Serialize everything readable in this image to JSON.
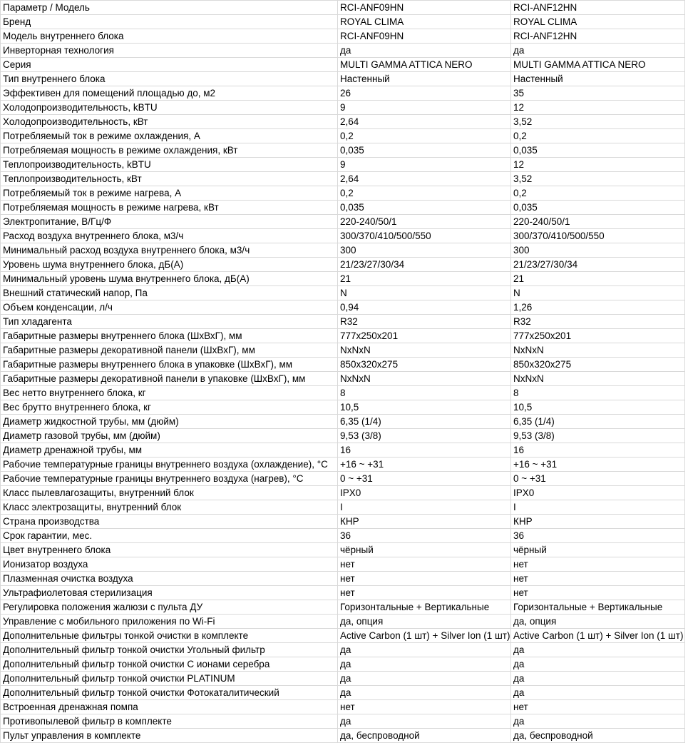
{
  "colors": {
    "grid_line": "#d9d9d9",
    "text": "#000000",
    "background": "#ffffff"
  },
  "table": {
    "header": [
      "Параметр / Модель",
      "RCI-ANF09HN",
      "RCI-ANF12HN"
    ],
    "rows": [
      [
        "Бренд",
        "ROYAL CLIMA",
        "ROYAL CLIMA"
      ],
      [
        "Модель внутреннего блока",
        "RCI-ANF09HN",
        "RCI-ANF12HN"
      ],
      [
        "Инверторная технология",
        "да",
        "да"
      ],
      [
        "Серия",
        "MULTI GAMMA ATTICA NERO",
        "MULTI GAMMA ATTICA NERO"
      ],
      [
        "Тип внутреннего блока",
        "Настенный",
        "Настенный"
      ],
      [
        "Эффективен для помещений площадью до, м2",
        "26",
        "35"
      ],
      [
        "Холодопроизводительность, kBTU",
        "9",
        "12"
      ],
      [
        "Холодопроизводительность, кВт",
        "2,64",
        "3,52"
      ],
      [
        "Потребляемый ток в режиме охлаждения, А",
        "0,2",
        "0,2"
      ],
      [
        "Потребляемая мощность в режиме охлаждения, кВт",
        "0,035",
        "0,035"
      ],
      [
        "Теплопроизводительность, kBTU",
        "9",
        "12"
      ],
      [
        "Теплопроизводительность, кВт",
        "2,64",
        "3,52"
      ],
      [
        "Потребляемый ток в режиме нагрева, А",
        "0,2",
        "0,2"
      ],
      [
        "Потребляемая мощность в режиме нагрева, кВт",
        "0,035",
        "0,035"
      ],
      [
        "Электропитание, В/Гц/Ф",
        "220-240/50/1",
        "220-240/50/1"
      ],
      [
        "Расход воздуха внутреннего блока, м3/ч",
        "300/370/410/500/550",
        "300/370/410/500/550"
      ],
      [
        "Минимальный расход воздуха внутреннего блока, м3/ч",
        "300",
        "300"
      ],
      [
        "Уровень шума внутреннего блока, дБ(А)",
        "21/23/27/30/34",
        "21/23/27/30/34"
      ],
      [
        "Минимальный уровень шума внутреннего блока, дБ(А)",
        "21",
        "21"
      ],
      [
        "Внешний статический напор, Па",
        "N",
        "N"
      ],
      [
        "Объем конденсации, л/ч",
        "0,94",
        "1,26"
      ],
      [
        "Тип хладагента",
        "R32",
        "R32"
      ],
      [
        "Габаритные размеры внутреннего блока (ШхВхГ), мм",
        "777x250x201",
        "777x250x201"
      ],
      [
        "Габаритные размеры декоративной панели (ШхВхГ), мм",
        "NxNxN",
        "NxNxN"
      ],
      [
        "Габаритные размеры внутреннего блока в упаковке (ШхВхГ), мм",
        "850x320x275",
        "850x320x275"
      ],
      [
        "Габаритные размеры декоративной панели в упаковке (ШхВхГ), мм",
        "NxNxN",
        "NxNxN"
      ],
      [
        "Вес нетто внутреннего блока, кг",
        "8",
        "8"
      ],
      [
        "Вес брутто внутреннего блока, кг",
        "10,5",
        "10,5"
      ],
      [
        "Диаметр жидкостной трубы, мм (дюйм)",
        "6,35 (1/4)",
        "6,35 (1/4)"
      ],
      [
        "Диаметр газовой трубы, мм (дюйм)",
        "9,53 (3/8)",
        "9,53 (3/8)"
      ],
      [
        "Диаметр дренажной трубы, мм",
        "16",
        "16"
      ],
      [
        "Рабочие температурные границы внутреннего воздуха (охлаждение), °С",
        "+16 ~ +31",
        "+16 ~ +31"
      ],
      [
        "Рабочие температурные границы внутреннего воздуха (нагрев), °С",
        "0 ~ +31",
        "0 ~ +31"
      ],
      [
        "Класс пылевлагозащиты, внутренний блок",
        "IPX0",
        "IPX0"
      ],
      [
        "Класс электрозащиты, внутренний блок",
        "I",
        "I"
      ],
      [
        "Страна производства",
        "КНР",
        "КНР"
      ],
      [
        "Срок гарантии, мес.",
        "36",
        "36"
      ],
      [
        "Цвет внутреннего блока",
        "чёрный",
        "чёрный"
      ],
      [
        "Ионизатор воздуха",
        "нет",
        "нет"
      ],
      [
        "Плазменная очистка воздуха",
        "нет",
        "нет"
      ],
      [
        "Ультрафиолетовая стерилизация",
        "нет",
        "нет"
      ],
      [
        "Регулировка положения жалюзи с пульта ДУ",
        "Горизонтальные + Вертикальные",
        "Горизонтальные + Вертикальные"
      ],
      [
        "Управление с мобильного приложения по Wi-Fi",
        "да, опция",
        "да, опция"
      ],
      [
        "Дополнительные фильтры тонкой очистки в комплекте",
        "Active Carbon (1 шт) + Silver Ion (1 шт)",
        "Active Carbon (1 шт) + Silver Ion (1 шт)"
      ],
      [
        "Дополнительный фильтр тонкой очистки Угольный фильтр",
        "да",
        "да"
      ],
      [
        "Дополнительный фильтр тонкой очистки С ионами серебра",
        "да",
        "да"
      ],
      [
        "Дополнительный фильтр тонкой очистки PLATINUM",
        "да",
        "да"
      ],
      [
        "Дополнительный фильтр тонкой очистки Фотокаталитический",
        "да",
        "да"
      ],
      [
        "Встроенная дренажная помпа",
        "нет",
        "нет"
      ],
      [
        "Противопылевой фильтр в комплекте",
        "да",
        "да"
      ],
      [
        "Пульт управления в комплекте",
        "да, беспроводной",
        "да, беспроводной"
      ]
    ]
  }
}
